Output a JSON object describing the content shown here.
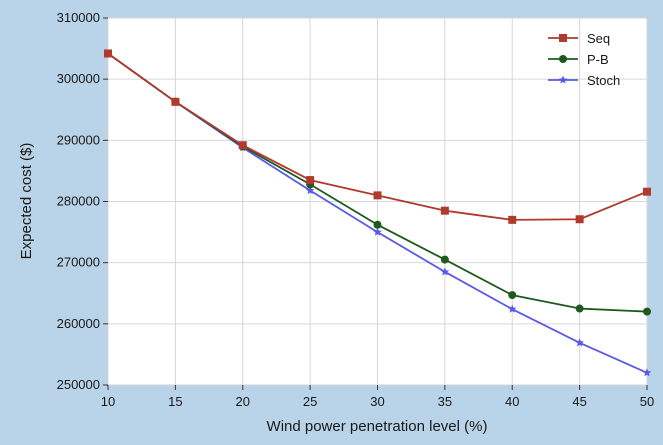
{
  "chart_data": {
    "type": "line",
    "title": "",
    "xlabel": "Wind power penetration level (%)",
    "ylabel": "Expected cost ($)",
    "x": [
      10,
      15,
      20,
      25,
      30,
      35,
      40,
      45,
      50
    ],
    "xlim": [
      10,
      50
    ],
    "ylim": [
      250000,
      310000
    ],
    "xticks": [
      "10",
      "15",
      "20",
      "25",
      "30",
      "35",
      "40",
      "45",
      "50"
    ],
    "yticks": [
      "250000",
      "260000",
      "270000",
      "280000",
      "290000",
      "300000",
      "310000"
    ],
    "grid": true,
    "legend_position": "top-right",
    "series": [
      {
        "name": "Seq",
        "color": "#b03a2e",
        "marker": "square",
        "values": [
          304200,
          296300,
          289200,
          283500,
          281000,
          278500,
          277000,
          277100,
          281600
        ]
      },
      {
        "name": "P-B",
        "color": "#1e5a1e",
        "marker": "circle",
        "values": [
          304200,
          296300,
          289000,
          282800,
          276200,
          270500,
          264700,
          262500,
          262000
        ]
      },
      {
        "name": "Stoch",
        "color": "#5a5ae8",
        "marker": "star",
        "values": [
          304200,
          296300,
          288800,
          281800,
          275000,
          268500,
          262400,
          256900,
          252000
        ]
      }
    ]
  }
}
